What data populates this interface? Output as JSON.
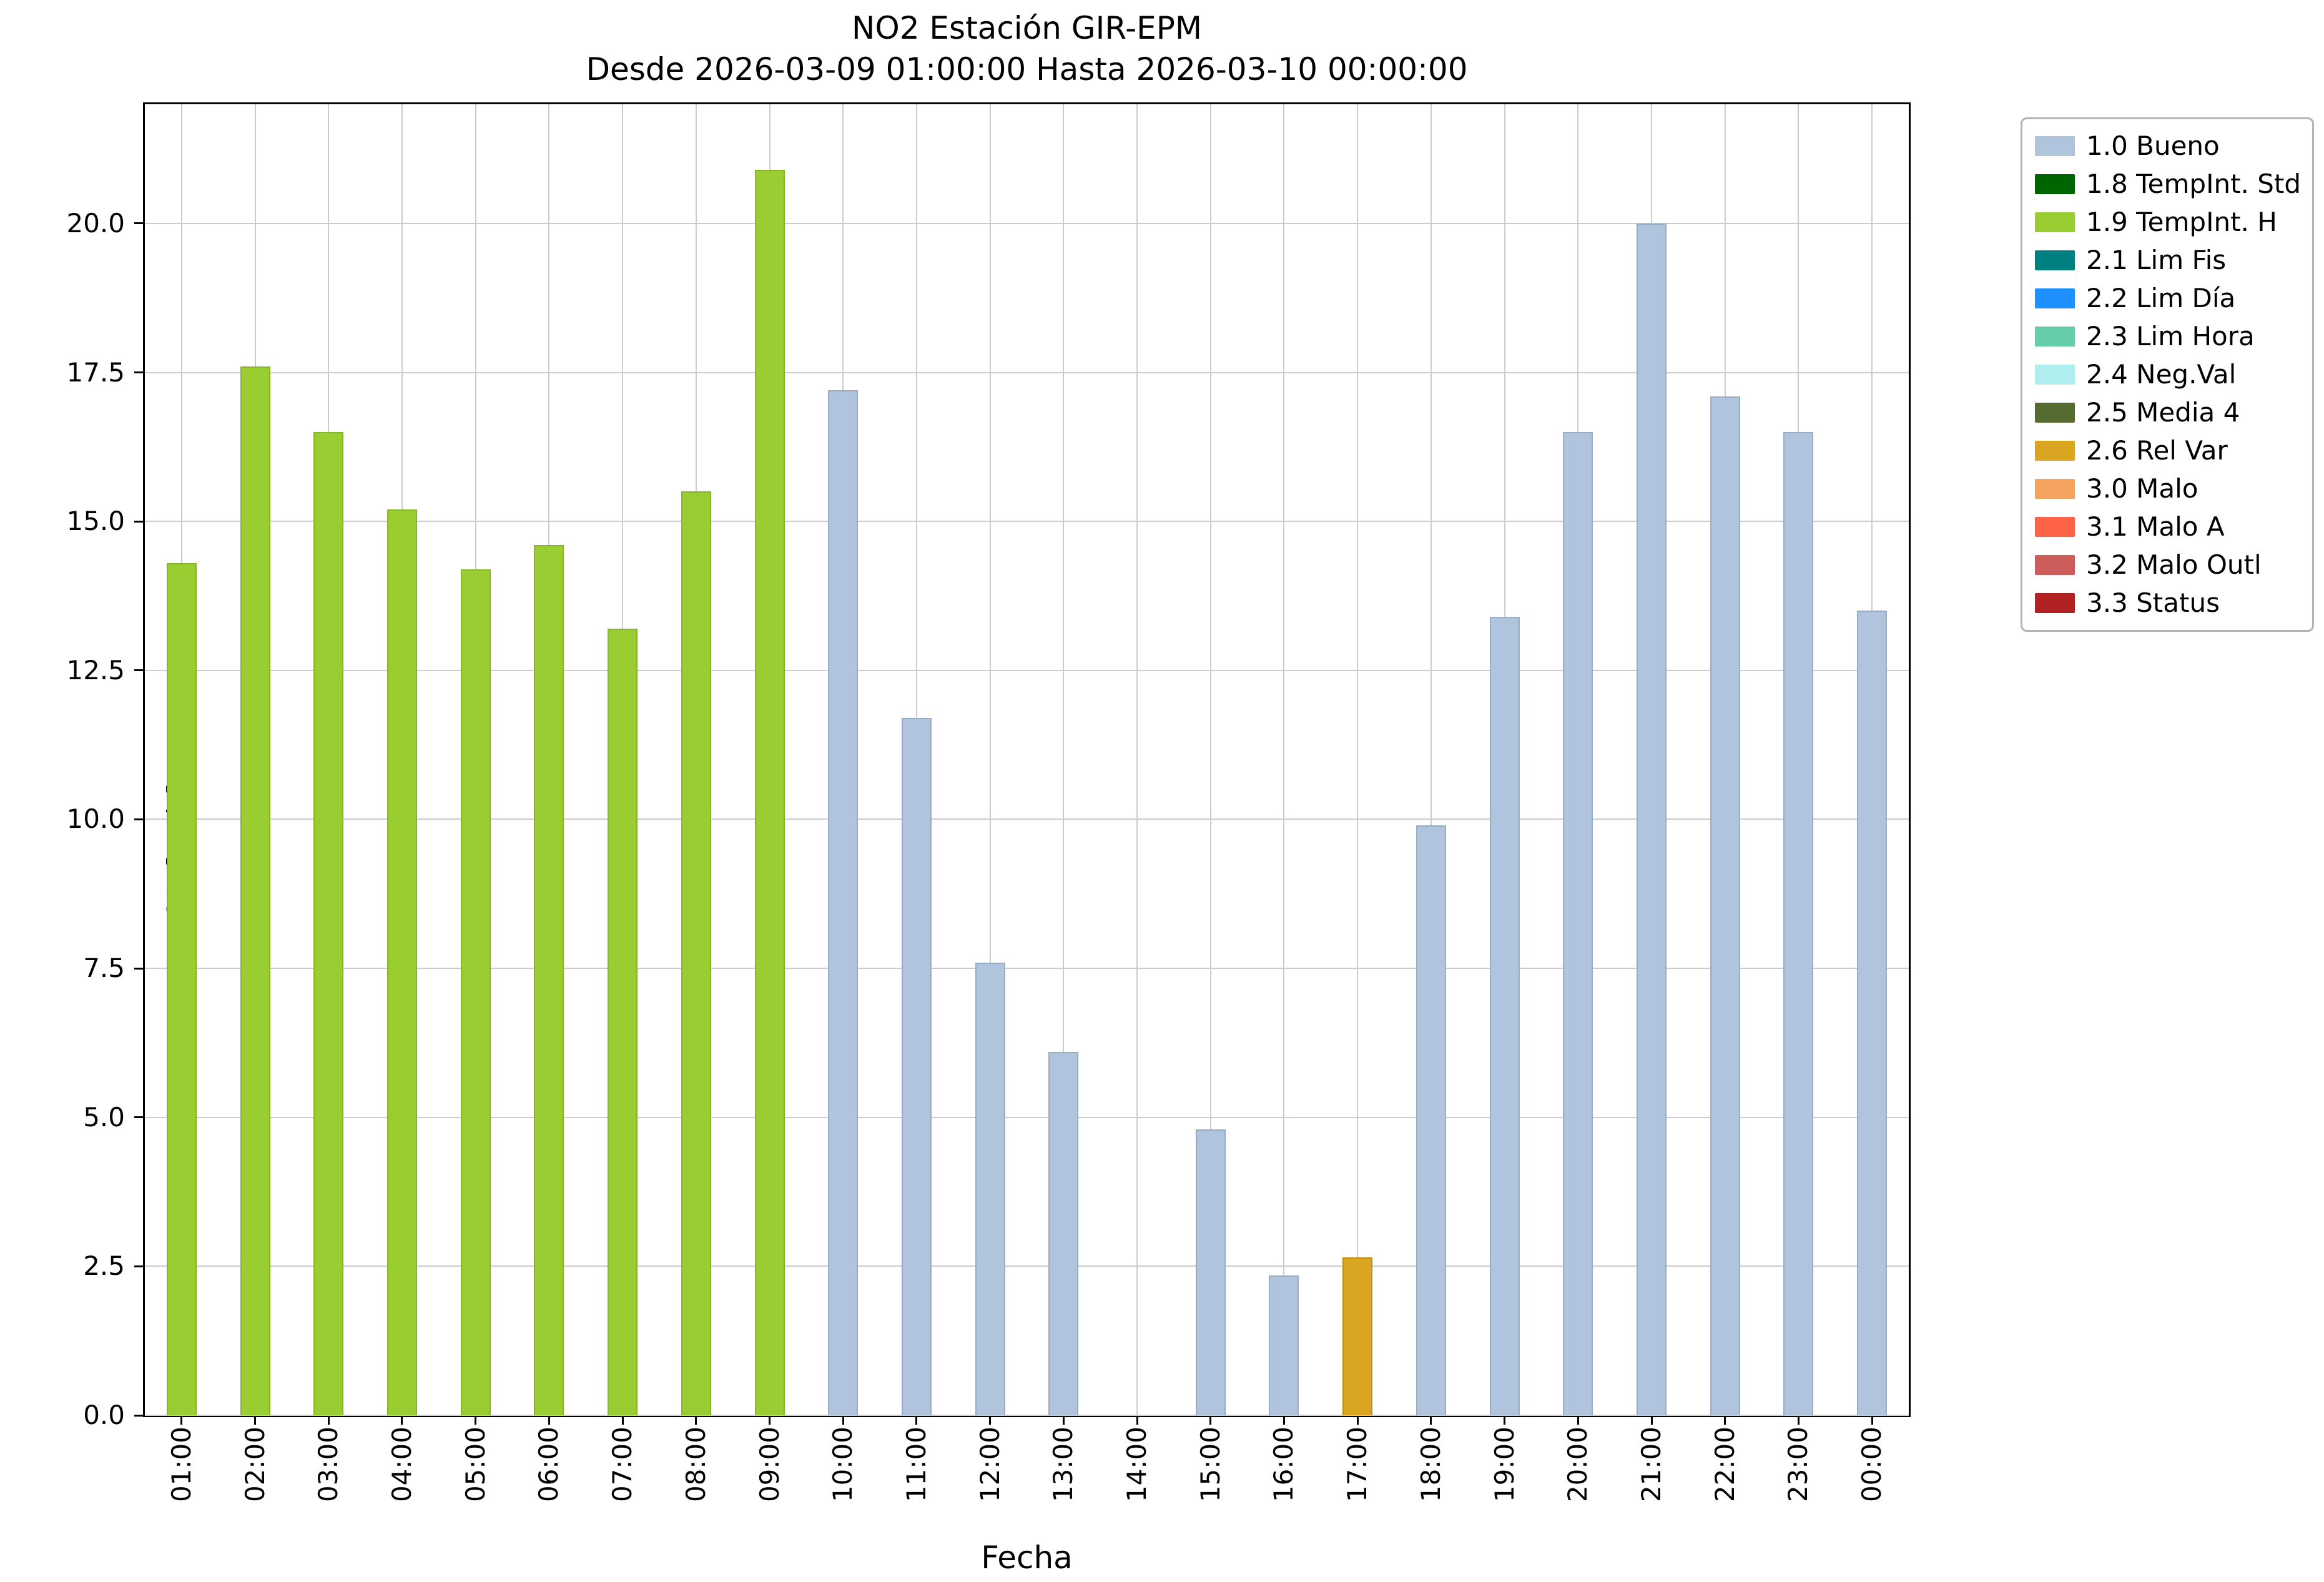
{
  "chart_data": {
    "type": "bar",
    "title": "NO2 Estación GIR-EPM",
    "subtitle": "Desde 2026-03-09 01:00:00 Hasta 2026-03-10 00:00:00",
    "xlabel": "Fecha",
    "ylabel": "NO2 [ppb]",
    "ylim": [
      0,
      22
    ],
    "grid": true,
    "legend_position": "outside upper right",
    "yticks": [
      0.0,
      2.5,
      5.0,
      7.5,
      10.0,
      12.5,
      15.0,
      17.5,
      20.0
    ],
    "ytick_labels": [
      "0.0",
      "2.5",
      "5.0",
      "7.5",
      "10.0",
      "12.5",
      "15.0",
      "17.5",
      "20.0"
    ],
    "categories": [
      "01:00",
      "02:00",
      "03:00",
      "04:00",
      "05:00",
      "06:00",
      "07:00",
      "08:00",
      "09:00",
      "10:00",
      "11:00",
      "12:00",
      "13:00",
      "14:00",
      "15:00",
      "16:00",
      "17:00",
      "18:00",
      "19:00",
      "20:00",
      "21:00",
      "22:00",
      "23:00",
      "00:00"
    ],
    "values": [
      14.3,
      17.6,
      16.5,
      15.2,
      14.2,
      14.6,
      13.2,
      15.5,
      20.9,
      17.2,
      11.7,
      7.6,
      6.1,
      0,
      4.8,
      2.35,
      2.65,
      9.9,
      13.4,
      16.5,
      20.0,
      17.1,
      16.5,
      13.5
    ],
    "statuses": [
      "1.9 TempInt. H",
      "1.9 TempInt. H",
      "1.9 TempInt. H",
      "1.9 TempInt. H",
      "1.9 TempInt. H",
      "1.9 TempInt. H",
      "1.9 TempInt. H",
      "1.9 TempInt. H",
      "1.9 TempInt. H",
      "1.0 Bueno",
      "1.0 Bueno",
      "1.0 Bueno",
      "1.0 Bueno",
      "1.0 Bueno",
      "1.0 Bueno",
      "1.0 Bueno",
      "2.6 Rel Var",
      "1.0 Bueno",
      "1.0 Bueno",
      "1.0 Bueno",
      "1.0 Bueno",
      "1.0 Bueno",
      "1.0 Bueno",
      "1.0 Bueno"
    ],
    "legend": [
      {
        "label": "1.0 Bueno",
        "color": "#b0c4de"
      },
      {
        "label": "1.8 TempInt. Std",
        "color": "#006400"
      },
      {
        "label": "1.9 TempInt. H",
        "color": "#9acd32"
      },
      {
        "label": "2.1 Lim Fis",
        "color": "#008080"
      },
      {
        "label": "2.2 Lim Día",
        "color": "#1e90ff"
      },
      {
        "label": "2.3 Lim Hora",
        "color": "#66cdaa"
      },
      {
        "label": "2.4 Neg.Val",
        "color": "#afeeee"
      },
      {
        "label": "2.5 Media 4",
        "color": "#556b2f"
      },
      {
        "label": "2.6 Rel Var",
        "color": "#daa520"
      },
      {
        "label": "3.0 Malo",
        "color": "#f4a460"
      },
      {
        "label": "3.1 Malo A",
        "color": "#ff6347"
      },
      {
        "label": "3.2 Malo Outl",
        "color": "#cd5c5c"
      },
      {
        "label": "3.3 Status",
        "color": "#b22222"
      }
    ]
  }
}
